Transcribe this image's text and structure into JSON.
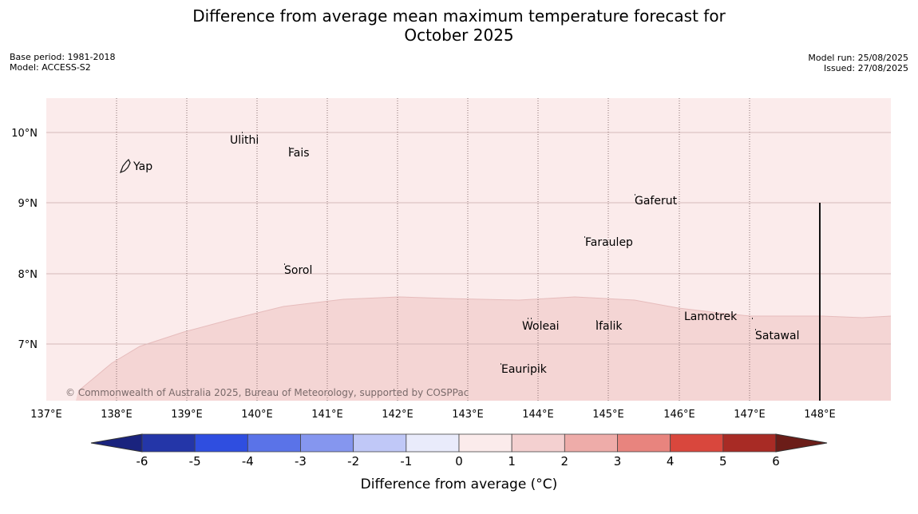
{
  "title_line1": "Difference from average mean maximum temperature forecast for",
  "title_line2": "October 2025",
  "base_period": "Base period: 1981-2018",
  "model": "Model: ACCESS-S2",
  "model_run": "Model run: 25/08/2025",
  "issued": "Issued: 27/08/2025",
  "copyright": "© Commonwealth of Australia 2025, Bureau of Meteorology, supported by COSPPac",
  "x_ticks": [
    "137°E",
    "138°E",
    "139°E",
    "140°E",
    "141°E",
    "142°E",
    "143°E",
    "144°E",
    "145°E",
    "146°E",
    "147°E",
    "148°E"
  ],
  "y_ticks": [
    "10°N",
    "9°N",
    "8°N",
    "7°N"
  ],
  "places": {
    "yap": "Yap",
    "ulithi": "Ulithi",
    "fais": "Fais",
    "gaferut": "Gaferut",
    "faraulep": "Faraulep",
    "sorol": "Sorol",
    "lamotrek": "Lamotrek",
    "woleai": "Woleai",
    "ifalik": "Ifalik",
    "satawal": "Satawal",
    "eauripik": "Eauripik"
  },
  "colorbar": {
    "title": "Difference from average (°C)",
    "ticks": [
      "-6",
      "-5",
      "-4",
      "-3",
      "-2",
      "-1",
      "0",
      "1",
      "2",
      "3",
      "4",
      "5",
      "6"
    ],
    "colors": {
      "below_min": "#1a237e",
      "bins": [
        "#2436a8",
        "#2f4ee0",
        "#5a73e8",
        "#8596ef",
        "#c0c8f7",
        "#e9ebfb",
        "#fbebeb",
        "#f4d0d0",
        "#eeaca9",
        "#e8847e",
        "#d9473d",
        "#a82b25"
      ],
      "above_max": "#6b1d18"
    }
  },
  "fill_colors": {
    "zone_0_1": "#fbebeb",
    "zone_1_2": "#f4d5d4"
  }
}
